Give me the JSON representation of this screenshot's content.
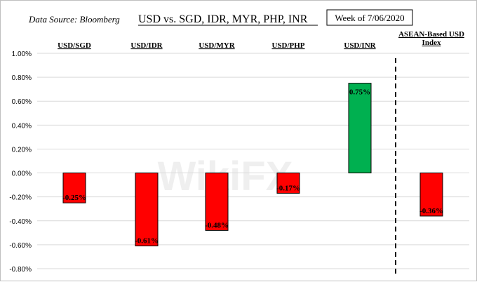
{
  "header": {
    "source": "Data Source: Bloomberg",
    "title": "USD vs. SGD, IDR, MYR, PHP, INR",
    "week": "Week of 7/06/2020"
  },
  "watermark": "WikiFX",
  "colors": {
    "negative": "#ff0000",
    "positive": "#00b050",
    "grid": "#d9d9d9",
    "divider": "#000000"
  },
  "chart_data": {
    "type": "bar",
    "categories": [
      "USD/SGD",
      "USD/IDR",
      "USD/MYR",
      "USD/PHP",
      "USD/INR",
      "ASEAN-Based USD Index"
    ],
    "category_lines": [
      [
        "USD/SGD"
      ],
      [
        "USD/IDR"
      ],
      [
        "USD/MYR"
      ],
      [
        "USD/PHP"
      ],
      [
        "USD/INR"
      ],
      [
        "ASEAN-Based USD",
        "Index"
      ]
    ],
    "values": [
      -0.25,
      -0.61,
      -0.48,
      -0.17,
      0.75,
      -0.36
    ],
    "data_labels": [
      "-0.25%",
      "-0.61%",
      "-0.48%",
      "-0.17%",
      "0.75%",
      "-0.36%"
    ],
    "ylim": [
      -0.8,
      1.0
    ],
    "yticks": [
      1.0,
      0.8,
      0.6,
      0.4,
      0.2,
      0.0,
      -0.2,
      -0.4,
      -0.6,
      -0.8
    ],
    "ytick_labels": [
      "1.00%",
      "0.80%",
      "0.60%",
      "0.40%",
      "0.20%",
      "0.00%",
      "-0.20%",
      "-0.40%",
      "-0.60%",
      "-0.80%"
    ],
    "grid": true,
    "divider_before_category": 5
  }
}
